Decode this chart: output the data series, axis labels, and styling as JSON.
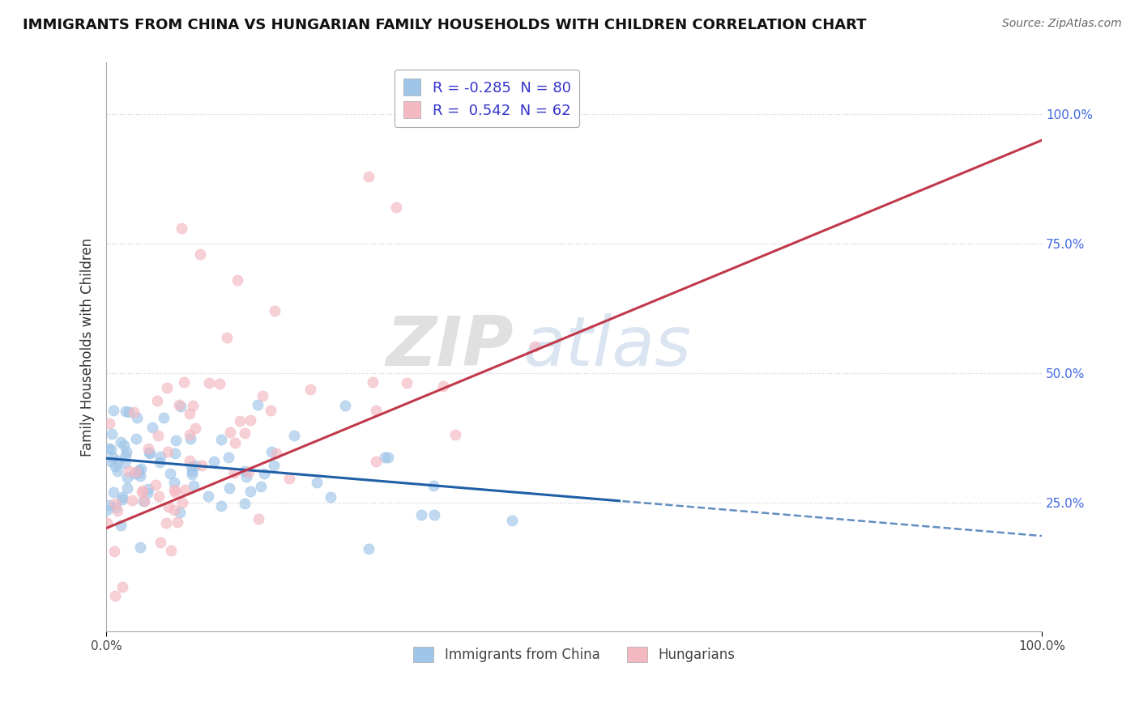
{
  "title": "IMMIGRANTS FROM CHINA VS HUNGARIAN FAMILY HOUSEHOLDS WITH CHILDREN CORRELATION CHART",
  "source": "Source: ZipAtlas.com",
  "ylabel": "Family Households with Children",
  "xlim": [
    0.0,
    1.0
  ],
  "ylim": [
    0.0,
    1.1
  ],
  "xtick_labels": [
    "0.0%",
    "100.0%"
  ],
  "ytick_labels": [
    "25.0%",
    "50.0%",
    "75.0%",
    "100.0%"
  ],
  "ytick_positions": [
    0.25,
    0.5,
    0.75,
    1.0
  ],
  "blue_color": "#9fc5e8",
  "pink_color": "#f4b8c1",
  "blue_line_color": "#1f5fa6",
  "pink_line_color": "#c0394b",
  "blue_R": -0.285,
  "blue_N": 80,
  "pink_R": 0.542,
  "pink_N": 62,
  "legend_label_blue": "Immigrants from China",
  "legend_label_pink": "Hungarians",
  "watermark_zip": "ZIP",
  "watermark_atlas": "atlas",
  "title_fontsize": 13,
  "source_fontsize": 10,
  "label_color": "#4169e1",
  "legend_r_color": "#3333cc"
}
